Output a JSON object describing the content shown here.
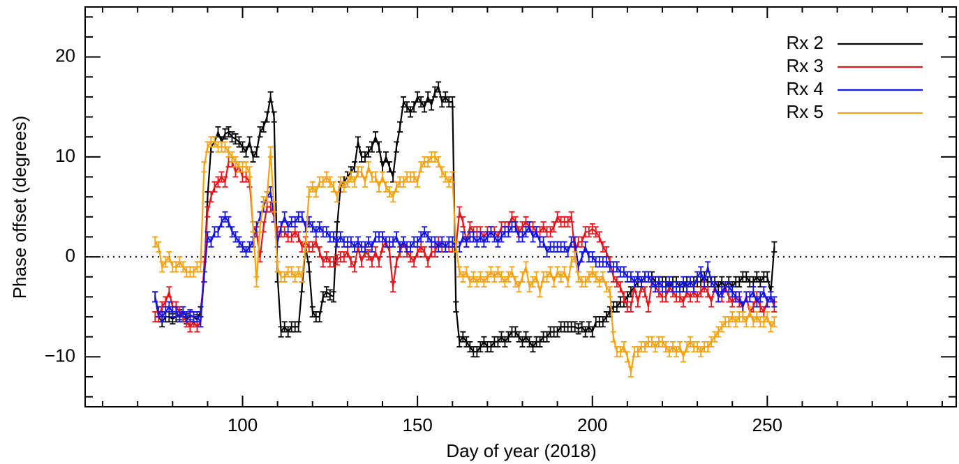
{
  "chart_data": {
    "type": "line",
    "xlabel": "Day of year (2018)",
    "ylabel": "Phase offset (degrees)",
    "xlim": [
      55,
      304
    ],
    "ylim": [
      -15,
      25
    ],
    "xticks": [
      100,
      150,
      200,
      250
    ],
    "xminorticks": [
      60,
      70,
      80,
      90,
      110,
      120,
      130,
      140,
      160,
      170,
      180,
      190,
      210,
      220,
      230,
      240,
      260,
      270,
      280,
      290,
      300
    ],
    "yticks": [
      {
        "value": -10,
        "label": "−10"
      },
      0,
      10,
      20
    ],
    "yminorticks": [
      -14,
      -12,
      -8,
      -6,
      -4,
      -2,
      2,
      4,
      6,
      8,
      12,
      14,
      16,
      18,
      22,
      24
    ],
    "reference_line": 0,
    "legend": "upper right",
    "x": [
      75,
      76,
      77,
      78,
      79,
      80,
      81,
      82,
      83,
      84,
      85,
      86,
      87,
      88,
      89,
      90,
      91,
      92,
      93,
      94,
      95,
      96,
      97,
      98,
      99,
      100,
      101,
      102,
      103,
      104,
      105,
      106,
      107,
      108,
      109,
      110,
      111,
      112,
      113,
      114,
      115,
      116,
      117,
      118,
      119,
      120,
      121,
      122,
      123,
      124,
      125,
      126,
      127,
      128,
      129,
      130,
      131,
      132,
      133,
      134,
      135,
      136,
      137,
      138,
      139,
      140,
      141,
      142,
      143,
      144,
      145,
      146,
      147,
      148,
      149,
      150,
      151,
      152,
      153,
      154,
      155,
      156,
      157,
      158,
      159,
      160,
      161,
      162,
      163,
      164,
      165,
      166,
      167,
      168,
      169,
      170,
      171,
      172,
      173,
      174,
      175,
      176,
      177,
      178,
      179,
      180,
      181,
      182,
      183,
      184,
      185,
      186,
      187,
      188,
      189,
      190,
      191,
      192,
      193,
      194,
      195,
      196,
      197,
      198,
      199,
      200,
      201,
      202,
      203,
      204,
      205,
      206,
      207,
      208,
      209,
      210,
      211,
      212,
      213,
      214,
      215,
      216,
      217,
      218,
      219,
      220,
      221,
      222,
      223,
      224,
      225,
      226,
      227,
      228,
      229,
      230,
      231,
      232,
      233,
      234,
      235,
      236,
      237,
      238,
      239,
      240,
      241,
      242,
      243,
      244,
      245,
      246,
      247,
      248,
      249,
      250,
      251,
      252
    ],
    "series": [
      {
        "name": "Rx 2",
        "color": "#000000",
        "error": 0.5,
        "values": [
          -4,
          -6,
          -6.5,
          -6,
          -6,
          -6.2,
          -6,
          -5.8,
          -6,
          -6.2,
          -6,
          -6,
          -6.3,
          -5.5,
          -2,
          6,
          11,
          11.5,
          12.5,
          11.5,
          12.3,
          12.5,
          12,
          11.8,
          11.5,
          11,
          10.5,
          11.5,
          10,
          10.5,
          12.5,
          13,
          14,
          16,
          14,
          -2,
          -7.5,
          -7,
          -7.5,
          -7,
          -7,
          -7,
          -3,
          1,
          -1,
          -5.5,
          -6,
          -6,
          -4,
          -3.5,
          -3.8,
          -4,
          3,
          7,
          7.5,
          8,
          8.5,
          9,
          11.5,
          10,
          10,
          10.5,
          11,
          12,
          11,
          9,
          10,
          9,
          8,
          11,
          13,
          15.5,
          15,
          14.5,
          15,
          16,
          15.5,
          15,
          16,
          15.2,
          16.5,
          17,
          15.5,
          16,
          15.5,
          15.5,
          -5,
          -8.5,
          -8,
          -8.5,
          -9,
          -9.5,
          -9.5,
          -9,
          -8.5,
          -9,
          -9,
          -8.5,
          -8.5,
          -8,
          -8.5,
          -8,
          -7.5,
          -7.5,
          -8,
          -8.5,
          -8,
          -8.5,
          -9,
          -8.5,
          -8.5,
          -8,
          -8,
          -7.5,
          -7.5,
          -7.5,
          -7,
          -7,
          -7,
          -7,
          -7,
          -7.2,
          -7,
          -7.5,
          -7,
          -7.5,
          -6.5,
          -6.5,
          -6.5,
          -6,
          -5.5,
          -5,
          -5,
          -4.5,
          -4.5,
          -4,
          -3.5,
          -3,
          -2.5,
          -2.5,
          -2,
          -2,
          -2,
          -2.5,
          -2.5,
          -2.5,
          -2.5,
          -3,
          -2.5,
          -2.5,
          -3,
          -3,
          -2.5,
          -2.5,
          -2.5,
          -2.5,
          -2.5,
          -2,
          -2.5,
          -2.5,
          -2.5,
          -3,
          -2.5,
          -3,
          -2.5,
          -3,
          -2.5,
          -2.5,
          -2,
          -2,
          -2.5,
          -2.5,
          -2,
          -2.5,
          -2,
          -2,
          -3.5,
          1
        ]
      },
      {
        "name": "Rx 3",
        "color": "#e8141c",
        "error": 0.5,
        "values": [
          -6,
          -6,
          -5,
          -4.5,
          -3.5,
          -5,
          -5,
          -5.5,
          -6,
          -6.5,
          -7,
          -6.5,
          -7,
          -6.5,
          -1,
          4.5,
          6,
          7,
          7.5,
          8,
          7.5,
          9.5,
          9.5,
          8.5,
          9,
          8,
          8,
          7.5,
          3,
          2.5,
          0,
          3,
          5,
          5,
          4,
          2.5,
          2.5,
          2.5,
          2,
          2,
          2.5,
          2,
          1,
          1.5,
          1,
          1,
          1.5,
          0.5,
          -0.5,
          0,
          -0.5,
          -0.5,
          -0.3,
          0,
          0,
          0.5,
          -0.5,
          -1,
          1,
          -0.5,
          0.5,
          0.2,
          -0.5,
          0.5,
          -0.5,
          1,
          1.5,
          0.5,
          -3,
          -0.5,
          0.5,
          1.5,
          0.5,
          0,
          -0.5,
          0.5,
          1,
          0.5,
          -0.5,
          0.5,
          0.5,
          1.5,
          1,
          1,
          1,
          1,
          1,
          4.5,
          3.5,
          1.5,
          3,
          2.5,
          2.5,
          2.5,
          2,
          2.5,
          2.5,
          2.5,
          2,
          3,
          3,
          3,
          4,
          3.5,
          2.5,
          3,
          3.5,
          3,
          3,
          2.5,
          2.5,
          3,
          2.5,
          2.5,
          3,
          4,
          3.5,
          3.5,
          3.5,
          4,
          0.5,
          1.5,
          1.5,
          2.5,
          2.5,
          2.8,
          2.5,
          2,
          1,
          0.5,
          -0.5,
          -2,
          -2.5,
          -3,
          -4,
          -5,
          -5,
          -3,
          -4.5,
          -3,
          -3.5,
          -5,
          -2.5,
          -3,
          -3.5,
          -4,
          -4,
          -3,
          -3.5,
          -4,
          -4,
          -4.5,
          -3.5,
          -4,
          -3.5,
          -4,
          -3.5,
          -3,
          -3.5,
          -4.5,
          -3,
          -4,
          -4,
          -3,
          -4,
          -4.5,
          -4,
          -4.5,
          -5,
          -4,
          -5.5,
          -5,
          -4,
          -5,
          -5.5,
          -4.5,
          -4,
          -5
        ]
      },
      {
        "name": "Rx 4",
        "color": "#1414e6",
        "error": 0.5,
        "values": [
          -4,
          -5.5,
          -6,
          -5.5,
          -5,
          -5.5,
          -5.5,
          -6,
          -5.5,
          -6,
          -5.8,
          -6,
          -6,
          -6.5,
          -2,
          2,
          1.5,
          2.5,
          2.5,
          3.5,
          4,
          3.5,
          2.5,
          2,
          1.5,
          1,
          0.5,
          1,
          1.5,
          3,
          4,
          5,
          6,
          6.5,
          4,
          1.5,
          3,
          4,
          3,
          3.5,
          3.5,
          4,
          4,
          3,
          3.5,
          3,
          2.5,
          3,
          2.5,
          2.5,
          2,
          2,
          1.5,
          2,
          1.5,
          1.5,
          1.5,
          1,
          1.5,
          1,
          1,
          1.5,
          1,
          2,
          2,
          2,
          1.5,
          1.5,
          1.5,
          2,
          1,
          1.5,
          1,
          1,
          1.5,
          1.5,
          2,
          2.5,
          2,
          1.5,
          1.5,
          1,
          1.5,
          1,
          1.5,
          1.5,
          1,
          1,
          2,
          1.5,
          2,
          2,
          1.5,
          2,
          1.5,
          2,
          2.5,
          2,
          1.5,
          2,
          2.5,
          2.5,
          3,
          3,
          2,
          2,
          2.5,
          3,
          2,
          2.5,
          1.5,
          1.5,
          0.5,
          1,
          1,
          1,
          1,
          1,
          0.5,
          1.5,
          1.5,
          -1,
          0,
          1,
          0,
          0,
          -0.5,
          -0.5,
          -0.5,
          -0.5,
          -1,
          -1,
          -1,
          -1.5,
          -1.5,
          -2,
          -2,
          -2.5,
          -2,
          -2.5,
          -2,
          -2,
          -2.5,
          -3,
          -2.5,
          -3,
          -3,
          -2.5,
          -3,
          -3,
          -3,
          -2.5,
          -3,
          -2.5,
          -3,
          -2,
          -1.5,
          -2.5,
          -1,
          -2.5,
          -3,
          -4,
          -3.5,
          -3,
          -3,
          -3.5,
          -4,
          -4,
          -5,
          -4,
          -4,
          -3.5,
          -4.5,
          -4,
          -3.5,
          -4.5,
          -4,
          -4.5
        ]
      },
      {
        "name": "Rx 5",
        "color": "#f5a313",
        "error": 0.5,
        "values": [
          1.5,
          1,
          -1,
          -0.5,
          0,
          -1,
          -1,
          -0.5,
          -1,
          -1.5,
          -1.5,
          -1.5,
          -1,
          -1,
          9,
          11,
          11.5,
          11.5,
          11,
          11,
          11,
          10.5,
          10,
          9.5,
          9,
          9,
          9,
          8.5,
          3,
          -2.5,
          3,
          5.5,
          6,
          10.5,
          5,
          -1,
          -2,
          -2,
          -1.5,
          -1.5,
          -2,
          -1.5,
          -2,
          1,
          6.5,
          7,
          6.5,
          7.5,
          7.5,
          8,
          7.5,
          7,
          6,
          7.5,
          7,
          7.5,
          8,
          7.5,
          8.5,
          8.5,
          7.5,
          9,
          8,
          8,
          7,
          8,
          7,
          6.5,
          6,
          7,
          7.5,
          7.5,
          8,
          8,
          8,
          7.5,
          9,
          9.5,
          9.5,
          10,
          10,
          9.5,
          8.5,
          8,
          7.5,
          8,
          1,
          -1.5,
          -2,
          -1.5,
          -2.5,
          -2,
          -2.5,
          -2,
          -2.5,
          -2,
          -1.5,
          -2,
          -1.5,
          -2,
          -2.5,
          -2,
          -1.5,
          -2.5,
          -3,
          -2,
          -1,
          -3,
          -2.5,
          -2,
          -3.5,
          -2,
          -2,
          -1.5,
          -2.5,
          -1.5,
          -2,
          -1.5,
          -2.5,
          -0.5,
          0,
          -2,
          -2.5,
          -2.5,
          -2,
          -1.5,
          -2,
          -2.5,
          -2,
          -3,
          -3.5,
          -8,
          -9.5,
          -9.5,
          -9,
          -10,
          -11.5,
          -9.5,
          -9.5,
          -9,
          -9,
          -8.5,
          -8.5,
          -9,
          -8.5,
          -8.5,
          -9,
          -9.5,
          -9,
          -9.5,
          -9,
          -10,
          -9,
          -8.5,
          -9,
          -9,
          -9.5,
          -9,
          -9,
          -8.5,
          -8,
          -7.5,
          -7,
          -6.5,
          -6.5,
          -6,
          -6.5,
          -6,
          -6,
          -6.5,
          -5.5,
          -6.5,
          -6,
          -6.5,
          -6.5,
          -6,
          -7,
          -6.5
        ]
      }
    ]
  }
}
